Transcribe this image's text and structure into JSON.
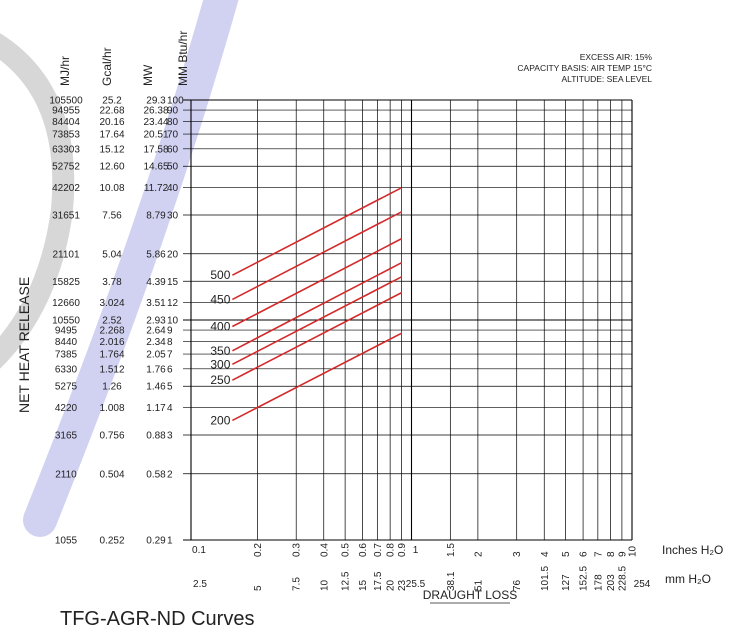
{
  "caption": "TFG-AGR-ND Curves",
  "annotations": [
    "EXCESS AIR: 15%",
    "CAPACITY BASIS: AIR TEMP 15°C",
    "ALTITUDE: SEA LEVEL"
  ],
  "y_title": "NET HEAT RELEASE",
  "x_title": "DRAUGHT LOSS",
  "y_units": [
    "MJ/hr",
    "Gcal/hr",
    "MW",
    "MM Btu/hr"
  ],
  "x_units": [
    "Inches H₂O",
    "mm H₂O"
  ],
  "colors": {
    "curve": "#d42a2a",
    "grid": "#000000",
    "band": "#c9c9f0",
    "arc": "#d7d7d7"
  },
  "chart_data": {
    "type": "line",
    "x_scale": "log",
    "y_scale": "log",
    "xlim": [
      0.1,
      10
    ],
    "ylim": [
      1,
      100
    ],
    "x_ticks_in": [
      "0.1",
      "0.2",
      "0.3",
      "0.4",
      "0.5",
      "0.6",
      "0.7",
      "0.8",
      "0.9",
      "1",
      "1.5",
      "2",
      "3",
      "4",
      "5",
      "6",
      "7",
      "8",
      "9",
      "10"
    ],
    "x_ticks_mm": [
      "2.5",
      "5",
      "7.5",
      "10",
      "12.5",
      "15",
      "17.5",
      "20",
      "23",
      "25.5",
      "38.1",
      "51",
      "76",
      "101.5",
      "127",
      "152.5",
      "178",
      "203",
      "228.5",
      "254"
    ],
    "y_ticks": [
      {
        "mmbtu": "100",
        "mw": "29.3",
        "gcal": "25.2",
        "mj": "105500"
      },
      {
        "mmbtu": "90",
        "mw": "26.38",
        "gcal": "22.68",
        "mj": "94955"
      },
      {
        "mmbtu": "80",
        "mw": "23.44",
        "gcal": "20.16",
        "mj": "84404"
      },
      {
        "mmbtu": "70",
        "mw": "20.51",
        "gcal": "17.64",
        "mj": "73853"
      },
      {
        "mmbtu": "60",
        "mw": "17.58",
        "gcal": "15.12",
        "mj": "63303"
      },
      {
        "mmbtu": "50",
        "mw": "14.65",
        "gcal": "12.60",
        "mj": "52752"
      },
      {
        "mmbtu": "40",
        "mw": "11.72",
        "gcal": "10.08",
        "mj": "42202"
      },
      {
        "mmbtu": "30",
        "mw": "8.79",
        "gcal": "7.56",
        "mj": "31651"
      },
      {
        "mmbtu": "20",
        "mw": "5.86",
        "gcal": "5.04",
        "mj": "21101"
      },
      {
        "mmbtu": "15",
        "mw": "4.39",
        "gcal": "3.78",
        "mj": "15825"
      },
      {
        "mmbtu": "12",
        "mw": "3.51",
        "gcal": "3.024",
        "mj": "12660"
      },
      {
        "mmbtu": "10",
        "mw": "2.93",
        "gcal": "2.52",
        "mj": "10550"
      },
      {
        "mmbtu": "9",
        "mw": "2.64",
        "gcal": "2.268",
        "mj": "9495"
      },
      {
        "mmbtu": "8",
        "mw": "2.34",
        "gcal": "2.016",
        "mj": "8440"
      },
      {
        "mmbtu": "7",
        "mw": "2.05",
        "gcal": "1.764",
        "mj": "7385"
      },
      {
        "mmbtu": "6",
        "mw": "1.76",
        "gcal": "1.512",
        "mj": "6330"
      },
      {
        "mmbtu": "5",
        "mw": "1.46",
        "gcal": "1.26",
        "mj": "5275"
      },
      {
        "mmbtu": "4",
        "mw": "1.17",
        "gcal": "1.008",
        "mj": "4220"
      },
      {
        "mmbtu": "3",
        "mw": "0.88",
        "gcal": "0.756",
        "mj": "3165"
      },
      {
        "mmbtu": "2",
        "mw": "0.58",
        "gcal": "0.504",
        "mj": "2110"
      },
      {
        "mmbtu": "1",
        "mw": "0.29",
        "gcal": "0.252",
        "mj": "1055"
      }
    ],
    "series": [
      {
        "name": "500",
        "x": [
          0.2,
          0.9
        ],
        "y": [
          18.3,
          39.9
        ]
      },
      {
        "name": "450",
        "x": [
          0.2,
          0.9
        ],
        "y": [
          14.2,
          31.0
        ]
      },
      {
        "name": "400",
        "x": [
          0.2,
          0.9
        ],
        "y": [
          10.7,
          23.4
        ]
      },
      {
        "name": "350",
        "x": [
          0.2,
          0.9
        ],
        "y": [
          8.3,
          18.2
        ]
      },
      {
        "name": "300",
        "x": [
          0.2,
          0.9
        ],
        "y": [
          7.2,
          15.7
        ]
      },
      {
        "name": "250",
        "x": [
          0.2,
          0.9
        ],
        "y": [
          6.1,
          13.3
        ]
      },
      {
        "name": "200",
        "x": [
          0.2,
          0.9
        ],
        "y": [
          4.0,
          8.7
        ]
      }
    ]
  }
}
